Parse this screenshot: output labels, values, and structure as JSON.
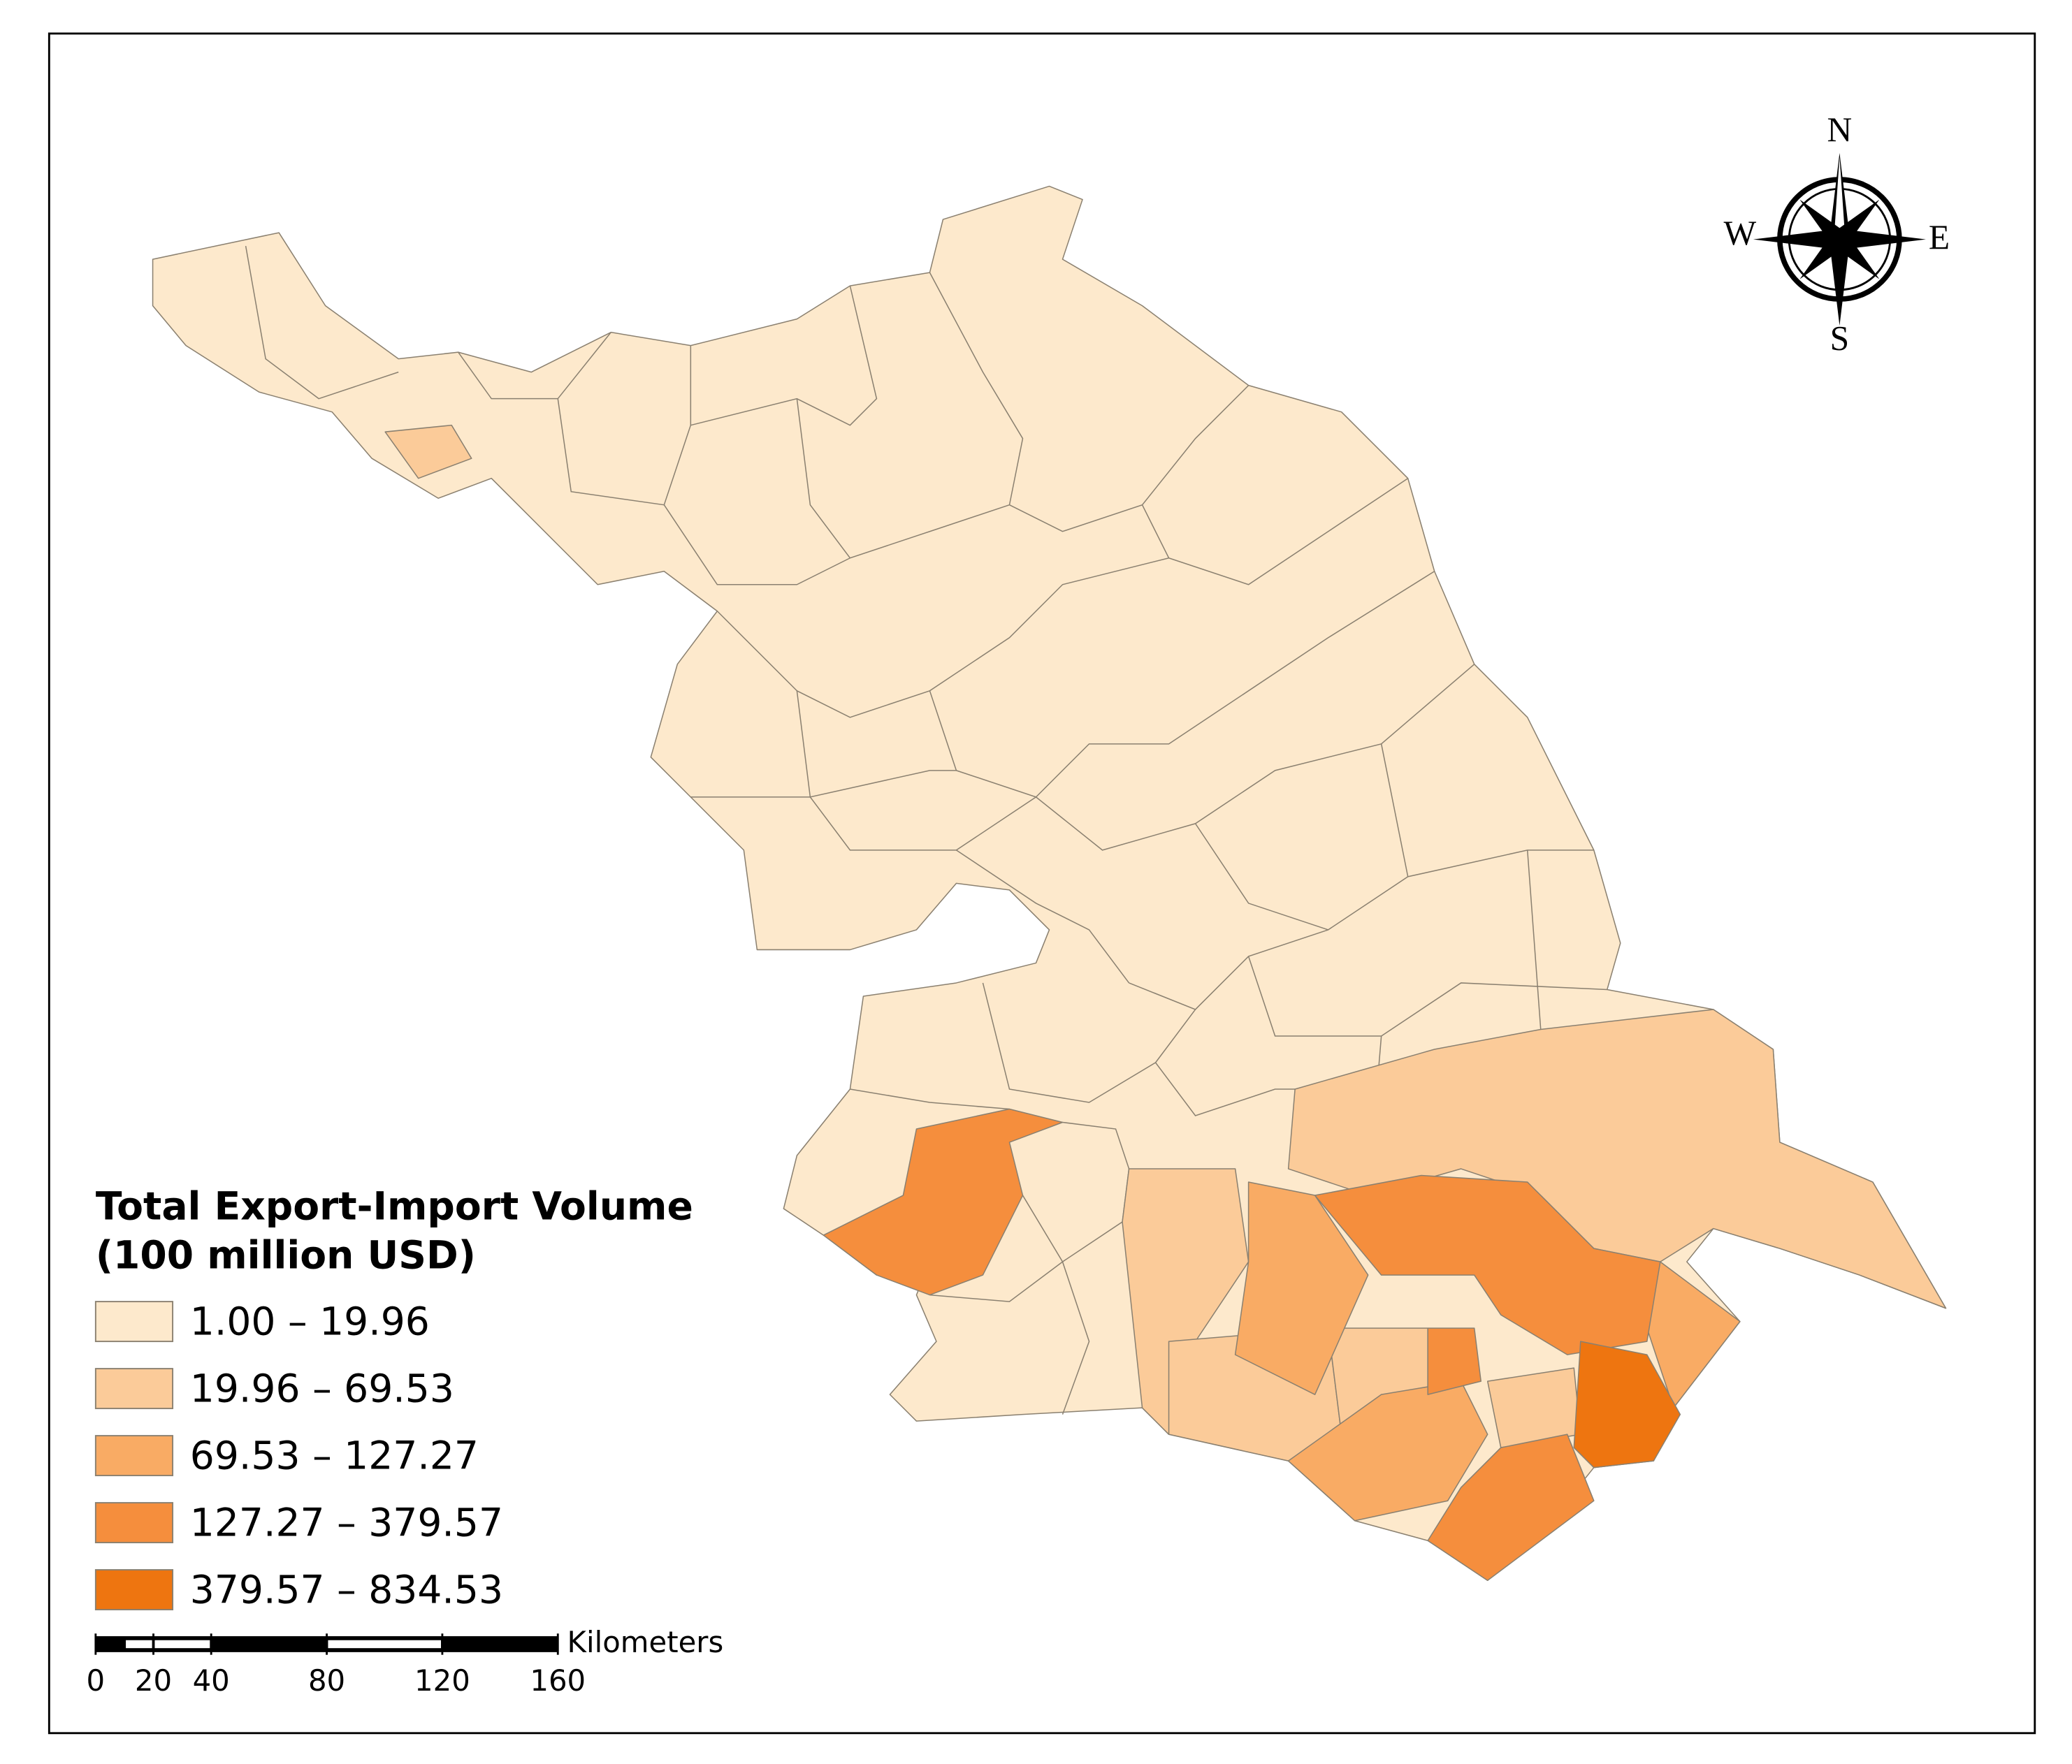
{
  "map": {
    "legend": {
      "title": [
        "Total Export-Import Volume",
        "(100 million USD)"
      ],
      "items": [
        {
          "label": "1.00 – 19.96",
          "color": "#fde9cc"
        },
        {
          "label": "19.96 – 69.53",
          "color": "#fbcb99"
        },
        {
          "label": "69.53 – 127.27",
          "color": "#f9ab64"
        },
        {
          "label": "127.27 – 379.57",
          "color": "#f58e3d"
        },
        {
          "label": "379.57 – 834.53",
          "color": "#ee7510"
        }
      ]
    },
    "scale_bar": {
      "unit": "Kilometers",
      "ticks": [
        0,
        20,
        40,
        80,
        120,
        160
      ]
    },
    "compass": {
      "north": "N",
      "east": "E",
      "south": "S",
      "west": "W"
    }
  }
}
